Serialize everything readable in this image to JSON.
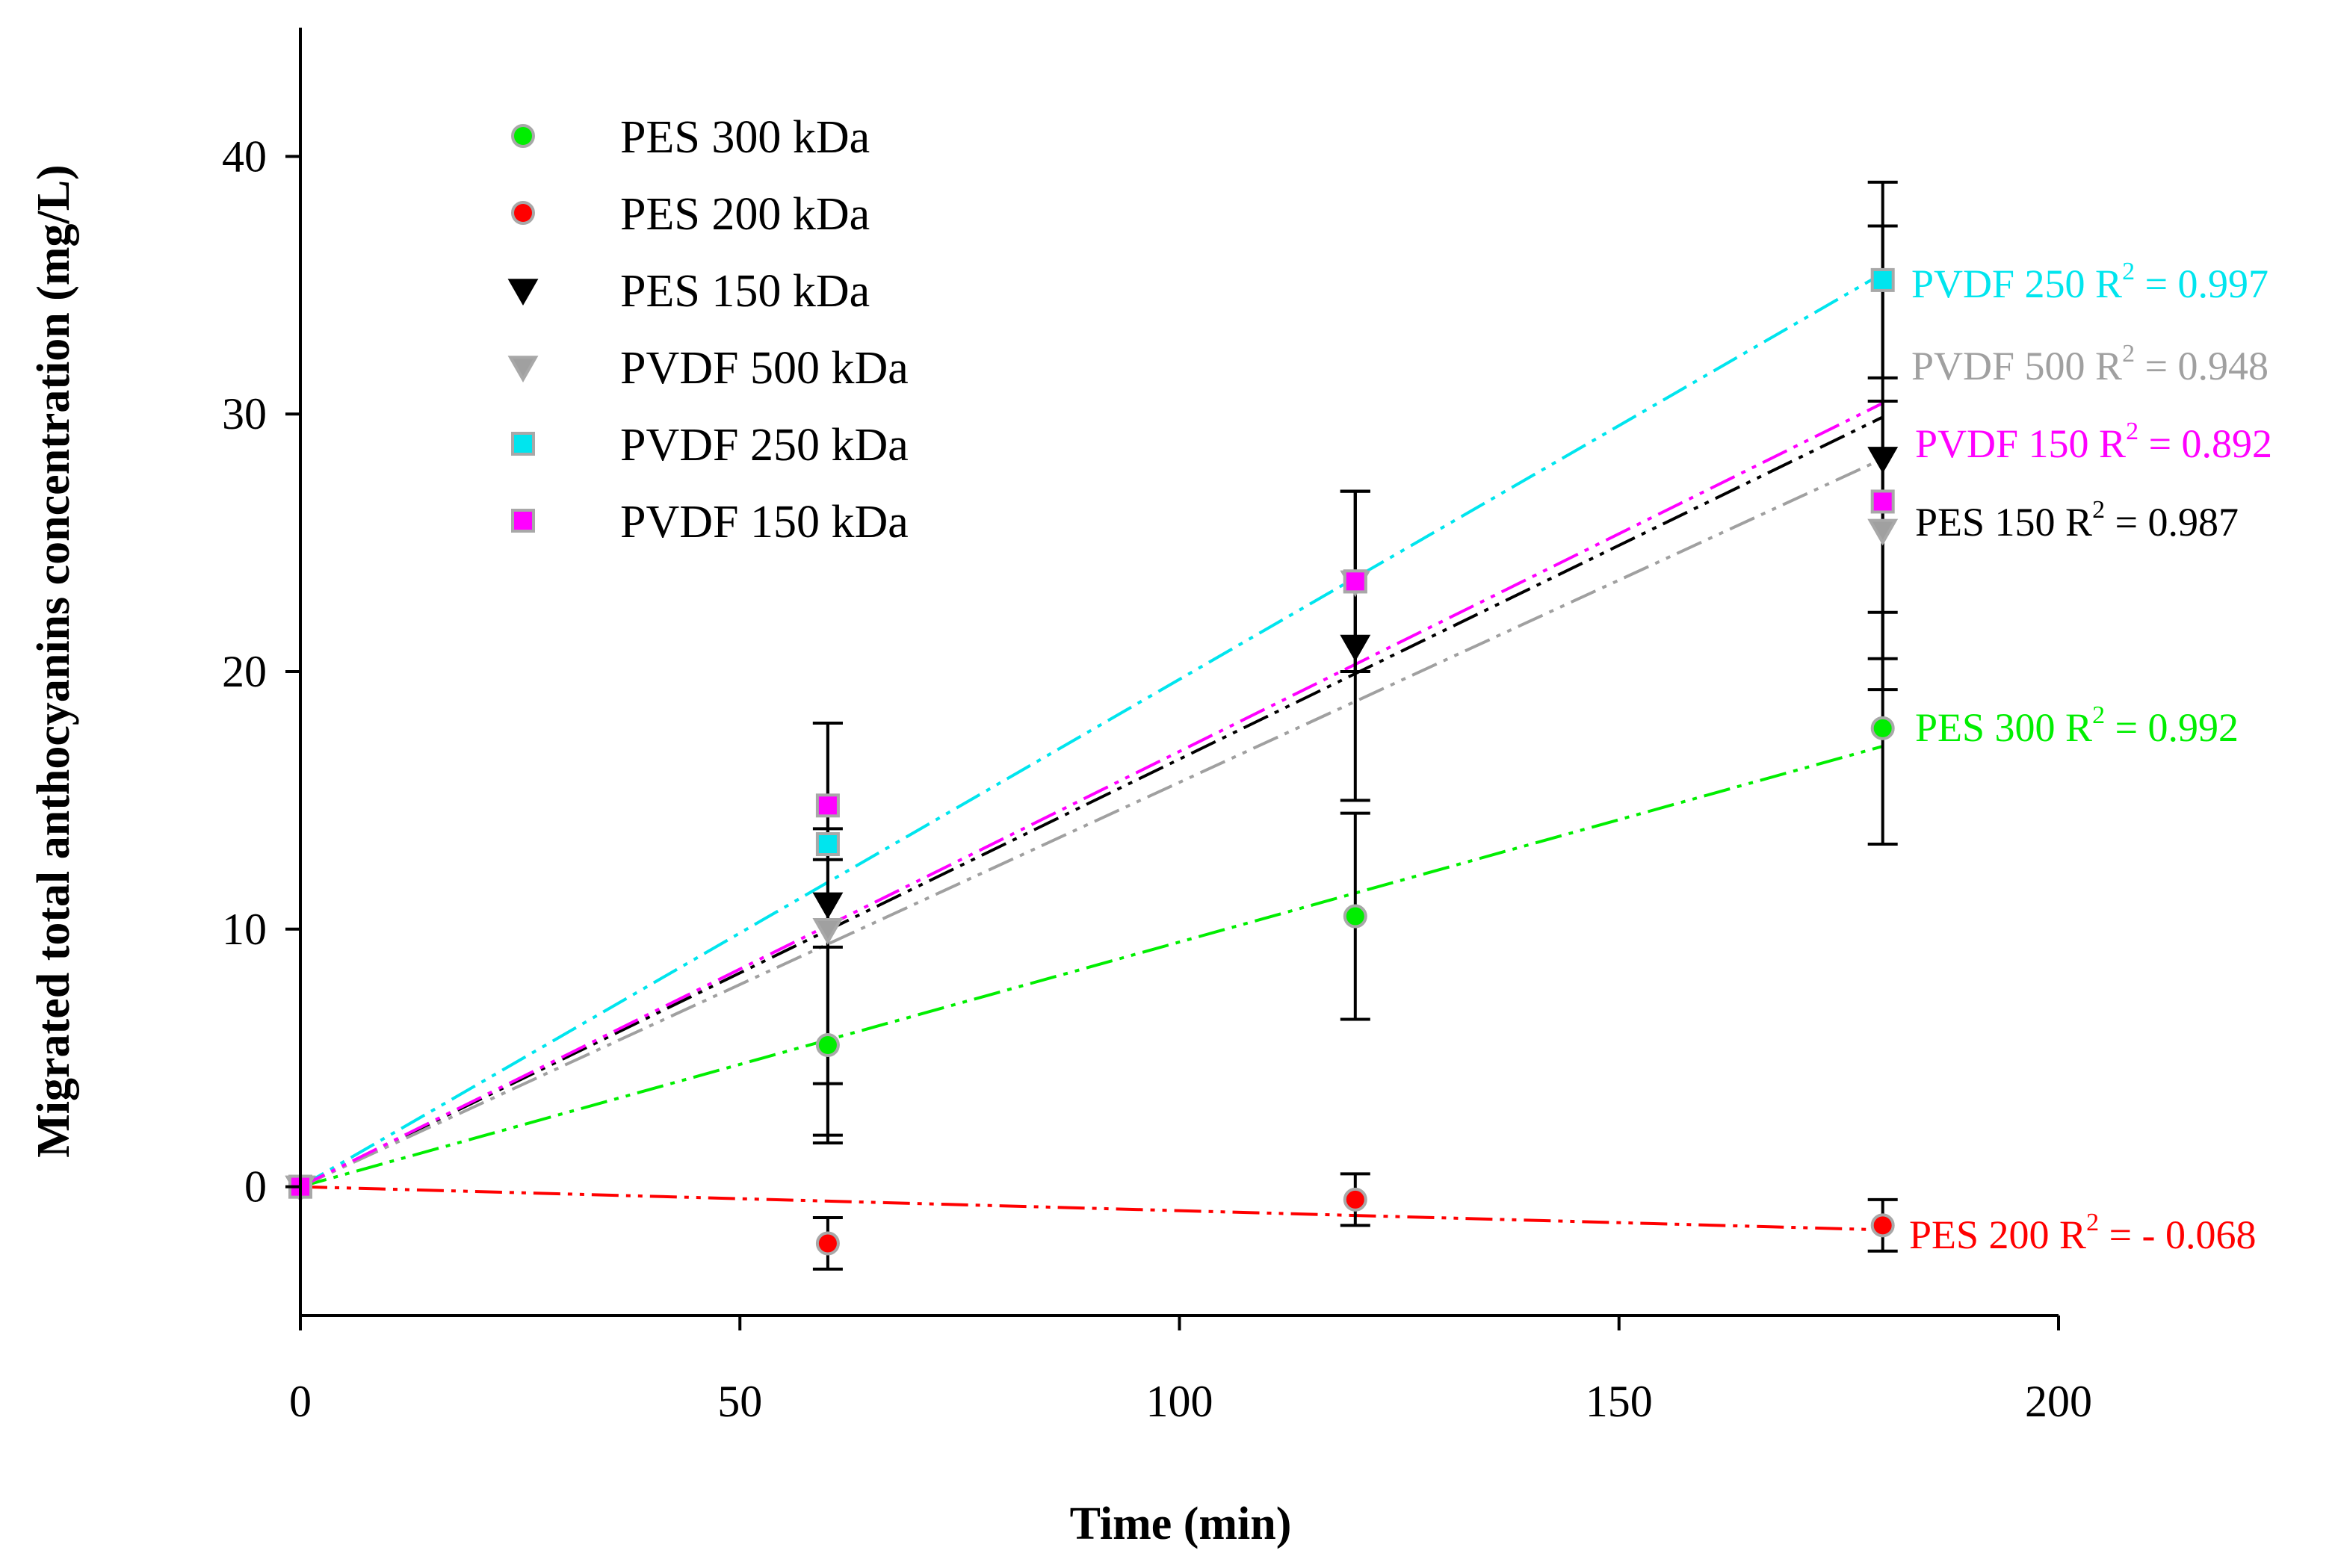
{
  "chart_data": {
    "type": "scatter",
    "title": "",
    "xlabel": "Time (min)",
    "ylabel": "Migrated total anthocyanins concentration (mg/L)",
    "xlim": [
      0,
      200
    ],
    "ylim": [
      -5,
      45
    ],
    "xticks": [
      0,
      50,
      100,
      150,
      200
    ],
    "yticks": [
      0,
      10,
      20,
      30,
      40
    ],
    "xtick_labels": [
      "0",
      "50",
      "100",
      "150",
      "200"
    ],
    "ytick_labels": [
      "0",
      "10",
      "20",
      "30",
      "40"
    ],
    "grid": false,
    "legend_position": "top-left",
    "series": [
      {
        "name": "PES 300 kDa",
        "key": "pes300",
        "color": "#00ee00",
        "marker": "circle",
        "x": [
          0,
          60,
          120,
          180
        ],
        "y": [
          0,
          5.5,
          10.5,
          17.8
        ],
        "err": [
          0,
          3.8,
          4.0,
          4.5
        ],
        "fit_slope": 0.095,
        "annotation": "PES 300 R",
        "annotation_value": " = 0.992"
      },
      {
        "name": "PES 200 kDa",
        "key": "pes200",
        "color": "#ff0000",
        "marker": "circle",
        "x": [
          0,
          60,
          120,
          180
        ],
        "y": [
          0,
          -2.2,
          -0.5,
          -1.5
        ],
        "err": [
          0,
          1.0,
          1.0,
          1.0
        ],
        "fit_slope": -0.0093,
        "annotation": "PES 200 R",
        "annotation_value": " = - 0.068"
      },
      {
        "name": "PES 150 kDa",
        "key": "pes150",
        "color": "#000000",
        "marker": "triangle-down",
        "x": [
          0,
          60,
          120,
          180
        ],
        "y": [
          0,
          11.0,
          21.0,
          28.3
        ],
        "err": [
          0,
          7.0,
          6.0,
          9.0
        ],
        "fit_slope": 0.166,
        "annotation": "PES 150 R",
        "annotation_value": " = 0.987"
      },
      {
        "name": "PVDF 500 kDa",
        "key": "pvdf500",
        "color": "#a0a0a0",
        "marker": "triangle-down",
        "x": [
          0,
          60,
          120,
          180
        ],
        "y": [
          0,
          10.0,
          23.5,
          25.5
        ],
        "err": [
          0,
          8.0,
          3.5,
          5.0
        ],
        "fit_slope": 0.157,
        "annotation": "PVDF 500 R",
        "annotation_value": " = 0.948"
      },
      {
        "name": "PVDF 250 kDa",
        "key": "pvdf250",
        "color": "#00e5ee",
        "marker": "square",
        "x": [
          0,
          60,
          120,
          180
        ],
        "y": [
          0,
          13.3,
          23.5,
          35.2
        ],
        "err": [
          0,
          0.6,
          3.5,
          3.8
        ],
        "fit_slope": 0.197,
        "annotation": "PVDF 250 R",
        "annotation_value": " = 0.997"
      },
      {
        "name": "PVDF 150 kDa",
        "key": "pvdf150",
        "color": "#ff00ff",
        "marker": "square",
        "x": [
          0,
          60,
          120,
          180
        ],
        "y": [
          0,
          14.8,
          23.5,
          26.6
        ],
        "err": [
          0,
          0,
          0,
          0
        ],
        "fit_slope": 0.169,
        "annotation": "PVDF 150 R",
        "annotation_value": " = 0.892"
      }
    ],
    "annotation_superscript": "2"
  }
}
